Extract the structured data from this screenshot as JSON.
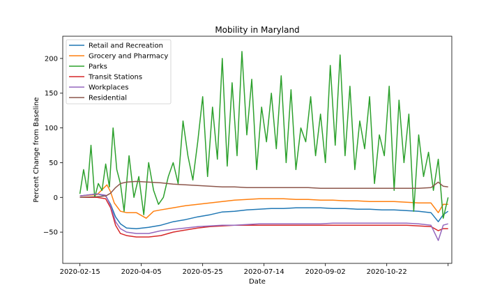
{
  "chart_data": {
    "type": "line",
    "title": "Mobility in Maryland",
    "xlabel": "Date",
    "ylabel": "Percent Change from Baseline",
    "x_start": "2020-02-15",
    "x_end": "2020-11-30",
    "xlim_days": [
      -14,
      303
    ],
    "ylim": [
      -95,
      232
    ],
    "x_ticks": [
      {
        "label": "2020-02-15",
        "day": 0
      },
      {
        "label": "2020-04-05",
        "day": 50
      },
      {
        "label": "2020-05-25",
        "day": 100
      },
      {
        "label": "2020-07-14",
        "day": 150
      },
      {
        "label": "2020-09-02",
        "day": 200
      },
      {
        "label": "2020-10-22",
        "day": 250
      },
      {
        "label": "",
        "day": 300
      }
    ],
    "y_ticks": [
      {
        "label": "−50",
        "value": -50
      },
      {
        "label": "0",
        "value": 0
      },
      {
        "label": "50",
        "value": 50
      },
      {
        "label": "100",
        "value": 100
      },
      {
        "label": "150",
        "value": 150
      },
      {
        "label": "200",
        "value": 200
      }
    ],
    "legend_position": "top-left",
    "series": [
      {
        "name": "Retail and Recreation",
        "color": "#1f77b4",
        "x": [
          0,
          14,
          21,
          25,
          29,
          33,
          38,
          46,
          56,
          66,
          76,
          86,
          96,
          106,
          116,
          126,
          136,
          146,
          156,
          166,
          176,
          186,
          196,
          206,
          216,
          226,
          236,
          246,
          256,
          266,
          276,
          286,
          292,
          296,
          300
        ],
        "values": [
          2,
          5,
          2,
          -10,
          -28,
          -38,
          -44,
          -45,
          -43,
          -40,
          -35,
          -32,
          -28,
          -25,
          -21,
          -20,
          -18,
          -17,
          -16,
          -16,
          -15,
          -15,
          -15,
          -16,
          -16,
          -17,
          -17,
          -18,
          -18,
          -19,
          -20,
          -22,
          -35,
          -25,
          -20
        ]
      },
      {
        "name": "Grocery and Pharmacy",
        "color": "#ff7f0e",
        "x": [
          0,
          14,
          22,
          25,
          28,
          33,
          38,
          46,
          54,
          60,
          66,
          76,
          86,
          96,
          106,
          116,
          126,
          136,
          146,
          156,
          166,
          176,
          186,
          196,
          206,
          216,
          226,
          236,
          246,
          256,
          266,
          276,
          286,
          292,
          296,
          300
        ],
        "values": [
          2,
          4,
          18,
          8,
          -8,
          -20,
          -22,
          -22,
          -30,
          -20,
          -18,
          -15,
          -12,
          -10,
          -8,
          -6,
          -4,
          -3,
          -2,
          -2,
          -2,
          -3,
          -3,
          -4,
          -4,
          -5,
          -5,
          -6,
          -6,
          -6,
          -7,
          -8,
          -8,
          -22,
          -10,
          -10
        ]
      },
      {
        "name": "Parks",
        "color": "#2ca02c",
        "x": [
          0,
          3,
          6,
          9,
          12,
          15,
          18,
          21,
          24,
          27,
          30,
          33,
          36,
          40,
          44,
          48,
          52,
          56,
          60,
          64,
          68,
          72,
          76,
          80,
          84,
          88,
          92,
          96,
          100,
          104,
          108,
          112,
          116,
          120,
          124,
          128,
          132,
          136,
          140,
          144,
          148,
          152,
          156,
          160,
          164,
          168,
          172,
          176,
          180,
          184,
          188,
          192,
          196,
          200,
          204,
          208,
          212,
          216,
          220,
          224,
          228,
          232,
          236,
          240,
          244,
          248,
          252,
          256,
          260,
          264,
          268,
          272,
          276,
          280,
          284,
          288,
          292,
          296,
          300
        ],
        "values": [
          5,
          40,
          10,
          75,
          0,
          20,
          10,
          48,
          15,
          100,
          40,
          20,
          -20,
          60,
          0,
          30,
          -25,
          50,
          10,
          -10,
          0,
          30,
          50,
          20,
          110,
          60,
          25,
          80,
          145,
          30,
          130,
          55,
          200,
          45,
          165,
          60,
          210,
          90,
          170,
          40,
          130,
          80,
          150,
          70,
          175,
          50,
          155,
          40,
          100,
          80,
          145,
          60,
          120,
          50,
          190,
          75,
          205,
          60,
          160,
          40,
          110,
          70,
          145,
          20,
          90,
          60,
          160,
          10,
          140,
          50,
          120,
          -20,
          90,
          30,
          65,
          10,
          55,
          -30,
          0
        ]
      },
      {
        "name": "Transit Stations",
        "color": "#d62728",
        "x": [
          0,
          14,
          21,
          25,
          29,
          33,
          38,
          46,
          56,
          66,
          76,
          86,
          96,
          106,
          116,
          126,
          136,
          146,
          156,
          166,
          176,
          186,
          196,
          206,
          216,
          226,
          236,
          246,
          256,
          266,
          276,
          286,
          292,
          296,
          300
        ],
        "values": [
          0,
          0,
          -2,
          -15,
          -40,
          -52,
          -55,
          -57,
          -57,
          -55,
          -50,
          -47,
          -44,
          -42,
          -41,
          -40,
          -40,
          -40,
          -40,
          -40,
          -40,
          -40,
          -40,
          -40,
          -40,
          -40,
          -40,
          -40,
          -40,
          -40,
          -41,
          -42,
          -48,
          -45,
          -45
        ]
      },
      {
        "name": "Workplaces",
        "color": "#9467bd",
        "x": [
          0,
          14,
          21,
          25,
          29,
          33,
          38,
          46,
          56,
          66,
          76,
          86,
          96,
          106,
          116,
          126,
          136,
          146,
          156,
          166,
          176,
          186,
          196,
          206,
          216,
          226,
          236,
          246,
          256,
          266,
          276,
          286,
          292,
          296,
          300
        ],
        "values": [
          2,
          5,
          3,
          -12,
          -35,
          -45,
          -50,
          -52,
          -52,
          -48,
          -46,
          -44,
          -42,
          -41,
          -40,
          -40,
          -39,
          -38,
          -38,
          -38,
          -38,
          -38,
          -38,
          -37,
          -37,
          -37,
          -37,
          -37,
          -37,
          -37,
          -38,
          -40,
          -62,
          -40,
          -38
        ]
      },
      {
        "name": "Residential",
        "color": "#8c564b",
        "x": [
          0,
          14,
          21,
          25,
          29,
          33,
          38,
          46,
          56,
          66,
          76,
          86,
          96,
          106,
          116,
          126,
          136,
          146,
          156,
          166,
          176,
          186,
          196,
          206,
          216,
          226,
          236,
          246,
          256,
          266,
          276,
          286,
          292,
          296,
          300
        ],
        "values": [
          0,
          1,
          2,
          6,
          14,
          20,
          22,
          23,
          22,
          21,
          19,
          18,
          17,
          16,
          15,
          15,
          14,
          14,
          14,
          14,
          14,
          14,
          13,
          13,
          13,
          13,
          13,
          13,
          13,
          13,
          13,
          14,
          22,
          16,
          15
        ]
      }
    ]
  }
}
